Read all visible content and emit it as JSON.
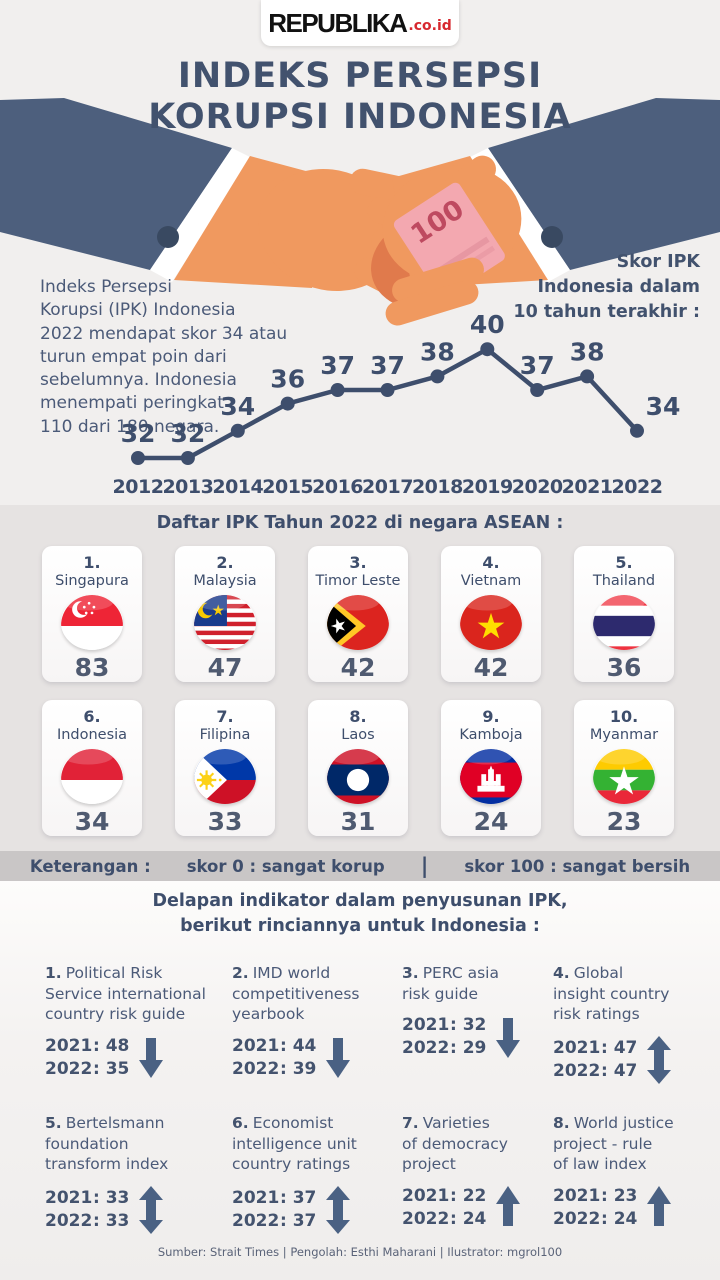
{
  "brand": {
    "name": "REPUBLIKA",
    "suffix": ".co.id"
  },
  "title": {
    "line1": "INDEKS PERSEPSI",
    "line2": "KORUPSI INDONESIA"
  },
  "intro": "Indeks Persepsi\nKorupsi (IPK) Indonesia\n2022 mendapat skor 34 atau\nturun empat poin dari\nsebelumnya. Indonesia\nmenempati peringkat\n110 dari 180 negara.",
  "chart_caption": "Skor IPK\nIndonesia dalam\n10 tahun terakhir :",
  "illustration": {
    "money_label": "100"
  },
  "chart_data": {
    "type": "line",
    "title": "Skor IPK Indonesia dalam 10 tahun terakhir",
    "x": [
      "2012",
      "2013",
      "2014",
      "2015",
      "2016",
      "2017",
      "2018",
      "2019",
      "2020",
      "2021",
      "2022"
    ],
    "values": [
      32,
      32,
      34,
      36,
      37,
      37,
      38,
      40,
      37,
      38,
      34
    ],
    "line_color": "#3e4e6c",
    "ylim": [
      30,
      42
    ],
    "grid": false,
    "data_labels": true,
    "legend": "none"
  },
  "asean": {
    "heading": "Daftar IPK Tahun 2022 di negara ASEAN :",
    "countries": [
      {
        "rank": "1.",
        "name": "Singapura",
        "score": "83",
        "flag": "singapore"
      },
      {
        "rank": "2.",
        "name": "Malaysia",
        "score": "47",
        "flag": "malaysia"
      },
      {
        "rank": "3.",
        "name": "Timor Leste",
        "score": "42",
        "flag": "timor-leste"
      },
      {
        "rank": "4.",
        "name": "Vietnam",
        "score": "42",
        "flag": "vietnam"
      },
      {
        "rank": "5.",
        "name": "Thailand",
        "score": "36",
        "flag": "thailand"
      },
      {
        "rank": "6.",
        "name": "Indonesia",
        "score": "34",
        "flag": "indonesia"
      },
      {
        "rank": "7.",
        "name": "Filipina",
        "score": "33",
        "flag": "philippines"
      },
      {
        "rank": "8.",
        "name": "Laos",
        "score": "31",
        "flag": "laos"
      },
      {
        "rank": "9.",
        "name": "Kamboja",
        "score": "24",
        "flag": "cambodia"
      },
      {
        "rank": "10.",
        "name": "Myanmar",
        "score": "23",
        "flag": "myanmar"
      }
    ]
  },
  "legend_bar": {
    "label": "Keterangan :",
    "left": "skor 0 : sangat korup",
    "divider": "|",
    "right": "skor 100 : sangat bersih"
  },
  "indicators": {
    "heading": "Delapan indikator dalam penyusunan IPK,\nberikut rinciannya untuk Indonesia :",
    "year1": "2021",
    "year2": "2022",
    "items": [
      {
        "num": "1.",
        "title": "Political Risk\nService international\ncountry risk guide",
        "v1": ": 48",
        "v2": ": 35",
        "trend": "down"
      },
      {
        "num": "2.",
        "title": "IMD world\ncompetitiveness\nyearbook",
        "v1": ": 44",
        "v2": ": 39",
        "trend": "down"
      },
      {
        "num": "3.",
        "title": "PERC asia\nrisk guide",
        "v1": ": 32",
        "v2": ": 29",
        "trend": "down"
      },
      {
        "num": "4.",
        "title": "Global\ninsight country\nrisk ratings",
        "v1": ": 47",
        "v2": ": 47",
        "trend": "flat"
      },
      {
        "num": "5.",
        "title": "Bertelsmann\nfoundation\ntransform index",
        "v1": ": 33",
        "v2": ": 33",
        "trend": "flat"
      },
      {
        "num": "6.",
        "title": "Economist\nintelligence unit\ncountry ratings",
        "v1": ": 37",
        "v2": ": 37",
        "trend": "flat"
      },
      {
        "num": "7.",
        "title": "Varieties\nof democracy\nproject",
        "v1": ": 22",
        "v2": ": 24",
        "trend": "up"
      },
      {
        "num": "8.",
        "title": "World justice\nproject - rule\nof law index",
        "v1": ": 23",
        "v2": ": 24",
        "trend": "up"
      }
    ]
  },
  "footer": "Sumber: Strait Times | Pengolah: Esthi Maharani | Ilustrator: mgrol100",
  "colors": {
    "navy": "#3e4e6c",
    "brand_red": "#d7282f",
    "sleeve": "#4d5f7d",
    "hand": "#f0995f",
    "money_pink": "#f3a8b0",
    "band_gray": "#c9c6c6"
  }
}
